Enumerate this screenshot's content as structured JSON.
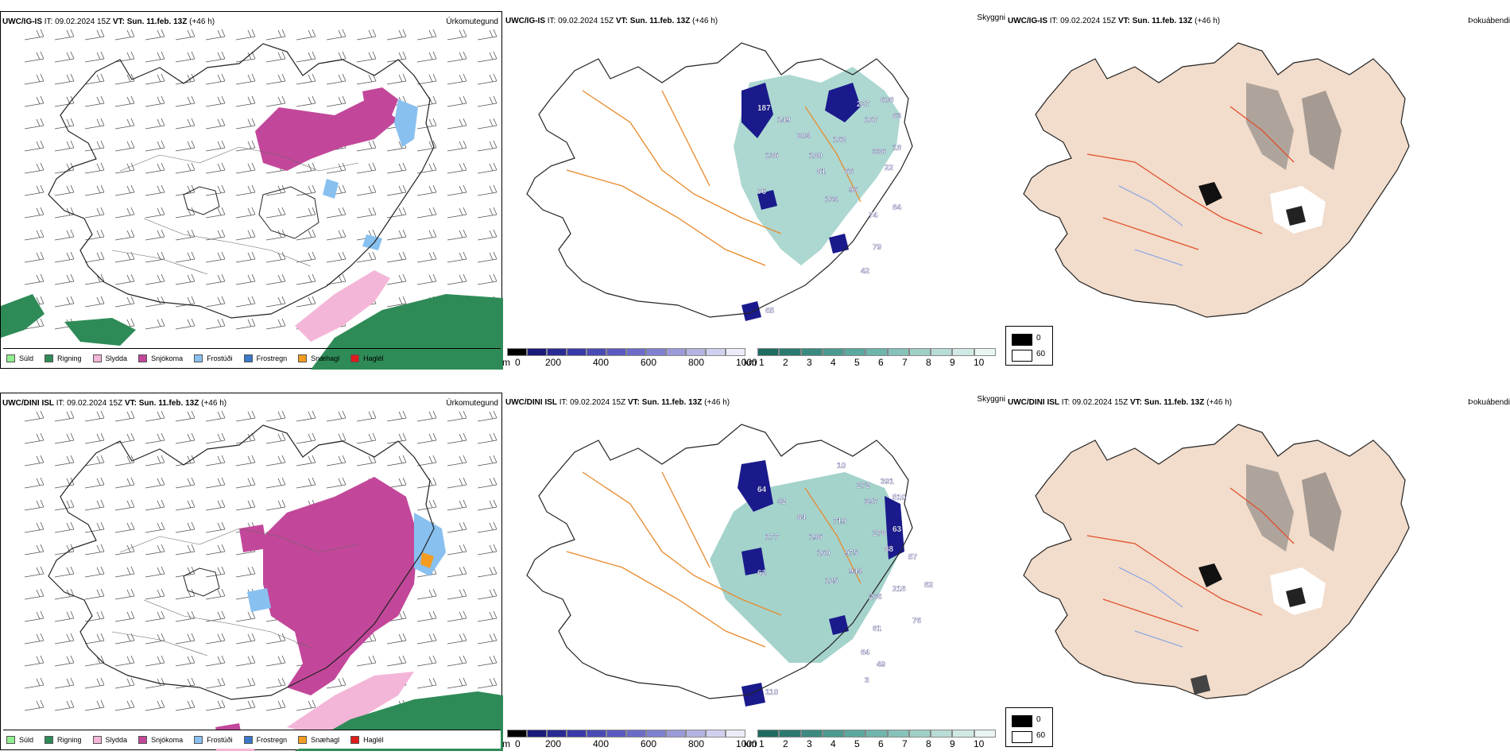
{
  "rows": [
    {
      "model": "UWC/IG-IS",
      "it": "IT: 09.02.2024 15Z",
      "vt_label": "VT:",
      "vt": "Sun. 11.feb. 13Z",
      "lead": "(+46 h)"
    },
    {
      "model": "UWC/DINI ISL",
      "it": "IT: 09.02.2024 15Z",
      "vt_label": "VT:",
      "vt": "Sun. 11.feb. 13Z",
      "lead": "(+46 h)"
    }
  ],
  "panel_titles": {
    "precip_type": "Úrkomutegund",
    "visibility": "Skyggni",
    "fog": "Þokuábendi"
  },
  "precip_legend": [
    {
      "label": "Súld",
      "color": "#90ee90"
    },
    {
      "label": "Rigning",
      "color": "#2e8b57"
    },
    {
      "label": "Slydda",
      "color": "#f4b6d8"
    },
    {
      "label": "Snjókoma",
      "color": "#c2479a"
    },
    {
      "label": "Frostúði",
      "color": "#88c0f0"
    },
    {
      "label": "Frostregn",
      "color": "#3a78c8"
    },
    {
      "label": "Snæhagl",
      "color": "#f39c1f"
    },
    {
      "label": "Haglél",
      "color": "#e01b1b"
    }
  ],
  "ceiling_scale": {
    "unit": "m",
    "ticks": [
      "0",
      "200",
      "400",
      "600",
      "800",
      "1000"
    ]
  },
  "vis_scale": {
    "unit": "km",
    "ticks": [
      "1",
      "2",
      "3",
      "4",
      "5",
      "6",
      "7",
      "8",
      "9",
      "10"
    ]
  },
  "fog_legend": [
    "0",
    "60"
  ],
  "ceiling_labels_top": [
    "187",
    "149",
    "204",
    "136",
    "180",
    "162",
    "227",
    "608",
    "167",
    "63",
    "336",
    "18",
    "81",
    "66",
    "96",
    "164",
    "84",
    "74",
    "79",
    "42",
    "76",
    "65",
    "22"
  ],
  "ceiling_labels_bottom": [
    "64",
    "42",
    "84",
    "177",
    "196",
    "719",
    "272",
    "391",
    "397",
    "510",
    "278",
    "63",
    "160",
    "975",
    "944",
    "125",
    "218",
    "266",
    "81",
    "84",
    "62",
    "110",
    "88",
    "57",
    "82",
    "76",
    "49",
    "3",
    "10"
  ]
}
